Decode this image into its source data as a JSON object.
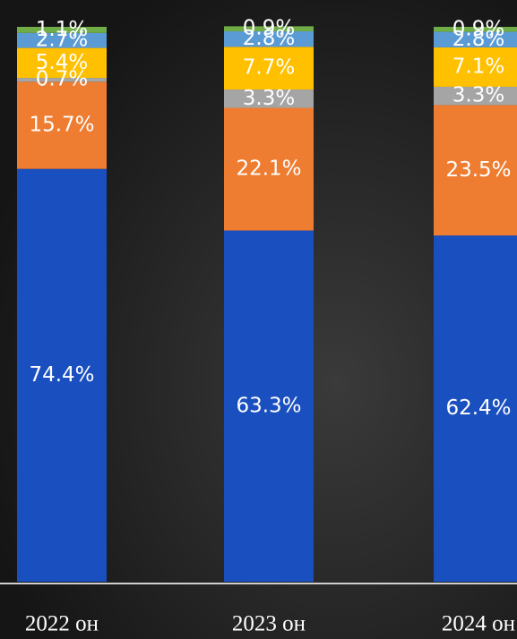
{
  "chart_data": {
    "type": "stacked_bar_percent",
    "categories": [
      "2022 он",
      "2023 он",
      "2024 он"
    ],
    "series": [
      {
        "color": "#1a4fbf",
        "values": [
          74.4,
          63.3,
          62.4
        ],
        "value_labels": [
          "74.4%",
          "63.3%",
          "62.4%"
        ]
      },
      {
        "color": "#ee7d31",
        "values": [
          15.7,
          22.1,
          23.5
        ],
        "value_labels": [
          "15.7%",
          "22.1%",
          "23.5%"
        ]
      },
      {
        "color": "#a5a5a5",
        "values": [
          0.7,
          3.3,
          3.3
        ],
        "value_labels": [
          "0.7%",
          "3.3%",
          "3.3%"
        ]
      },
      {
        "color": "#ffc000",
        "values": [
          5.4,
          7.7,
          7.1
        ],
        "value_labels": [
          "5.4%",
          "7.7%",
          "7.1%"
        ]
      },
      {
        "color": "#5b9bd5",
        "values": [
          2.7,
          2.8,
          2.8
        ],
        "value_labels": [
          "2.7%",
          "2.8%",
          "2.8%"
        ]
      },
      {
        "color": "#70ad47",
        "values": [
          1.1,
          0.9,
          0.9
        ],
        "value_labels": [
          "1.1%",
          "0.9%",
          "0.9%"
        ]
      }
    ],
    "ylim": [
      0,
      100
    ]
  }
}
